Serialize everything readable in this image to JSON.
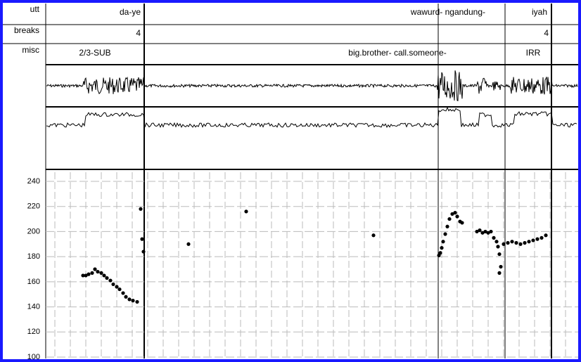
{
  "tiers": [
    {
      "name": "utt",
      "labels": [
        "da-ye",
        "wawurd- ngandung-",
        "iyah"
      ]
    },
    {
      "name": "breaks",
      "labels": [
        "4",
        "4"
      ]
    },
    {
      "name": "misc",
      "labels": [
        "2/3-SUB",
        "big.brother- call.someone-",
        "IRR"
      ]
    }
  ],
  "chart_data": {
    "type": "scatter",
    "x": [
      118,
      122,
      126,
      131,
      135,
      139,
      144,
      148,
      152,
      157,
      161,
      166,
      170,
      175,
      179,
      184,
      189,
      195,
      200,
      202,
      204,
      268,
      350,
      531,
      624,
      626,
      628,
      630,
      633,
      636,
      639,
      643,
      647,
      650,
      654,
      657,
      678,
      682,
      686,
      690,
      694,
      698,
      702,
      706,
      708,
      710,
      712,
      710,
      716,
      722,
      728,
      734,
      740,
      746,
      752,
      758,
      764,
      770,
      776
    ],
    "values": [
      165,
      165,
      166,
      167,
      170,
      168,
      167,
      165,
      163,
      161,
      158,
      156,
      154,
      151,
      148,
      146,
      145,
      144,
      218,
      194,
      184,
      190,
      216,
      197,
      181,
      183,
      187,
      192,
      198,
      204,
      210,
      214,
      215,
      212,
      208,
      207,
      200,
      201,
      199,
      200,
      199,
      200,
      195,
      192,
      188,
      182,
      172,
      167,
      190,
      191,
      192,
      191,
      190,
      191,
      192,
      193,
      194,
      195,
      197
    ],
    "color": "#000000",
    "xlim": [
      65,
      826
    ],
    "ylim": [
      100,
      240
    ],
    "yticks": [
      100,
      120,
      140,
      160,
      180,
      200,
      220,
      240
    ],
    "grid": true
  }
}
